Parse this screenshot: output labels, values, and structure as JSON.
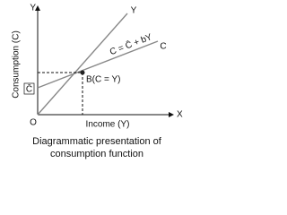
{
  "axes": {
    "y_axis_letter": "Y",
    "x_axis_letter": "X",
    "y_title": "Consumption (C)",
    "x_title": "Income (Y)",
    "origin": "O"
  },
  "lines": {
    "forty_five_label": "Y",
    "consumption_label": "C",
    "equation": "C = C̄ + bY",
    "intercept_label": "C̄"
  },
  "point": {
    "label": "B(C = Y)"
  },
  "caption": [
    "Diagrammatic presentation of",
    "consumption function"
  ]
}
